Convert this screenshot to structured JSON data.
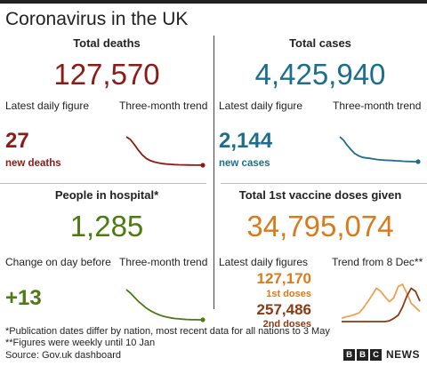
{
  "title": "Coronavirus in the UK",
  "colors": {
    "deaths": "#8c1a16",
    "cases": "#1c6e8c",
    "hospital": "#4d7a12",
    "vaccine": "#d97a1c",
    "vaccine_2nd": "#8b3a14"
  },
  "deaths": {
    "heading": "Total deaths",
    "total": "127,570",
    "daily_label": "Latest daily figure",
    "trend_label": "Three-month trend",
    "daily_value": "27",
    "daily_sub": "new deaths"
  },
  "cases": {
    "heading": "Total cases",
    "total": "4,425,940",
    "daily_label": "Latest daily figure",
    "trend_label": "Three-month trend",
    "daily_value": "2,144",
    "daily_sub": "new cases"
  },
  "hospital": {
    "heading": "People in hospital*",
    "total": "1,285",
    "daily_label": "Change on day before",
    "trend_label": "Three-month trend",
    "daily_value": "+13"
  },
  "vaccine": {
    "heading": "Total 1st vaccine doses given",
    "total": "34,795,074",
    "daily_label": "Latest daily figures",
    "trend_label": "Trend from 8 Dec**",
    "first_value": "127,170",
    "first_sub": "1st doses",
    "second_value": "257,486",
    "second_sub": "2nd doses"
  },
  "footnotes": {
    "line1": "*Publication dates differ by nation, most recent data for all nations to 3 May",
    "line2": "**Figures were weekly until 10 Jan",
    "source": "Source: Gov.uk dashboard"
  },
  "brand": {
    "b1": "B",
    "b2": "B",
    "b3": "C",
    "news": "NEWS"
  },
  "chart_data": [
    {
      "type": "line",
      "name": "deaths-trend",
      "values": [
        1300,
        1180,
        950,
        700,
        480,
        330,
        230,
        170,
        130,
        100,
        80,
        65,
        55,
        48,
        42,
        38,
        34,
        31,
        29,
        27
      ]
    },
    {
      "type": "line",
      "name": "cases-trend",
      "values": [
        60000,
        52000,
        40000,
        30000,
        21000,
        16000,
        12500,
        11000,
        10000,
        8500,
        7000,
        6200,
        5700,
        5300,
        4800,
        4200,
        3700,
        3200,
        2800,
        2500,
        2200,
        2144
      ]
    },
    {
      "type": "line",
      "name": "hospital-trend",
      "values": [
        37000,
        33000,
        28000,
        23000,
        19000,
        15000,
        12000,
        9500,
        7500,
        5800,
        4500,
        3600,
        2900,
        2400,
        2000,
        1700,
        1500,
        1400,
        1330,
        1285
      ]
    },
    {
      "type": "line",
      "name": "vaccine-1st-trend",
      "values": [
        40000,
        60000,
        70000,
        90000,
        110000,
        170000,
        250000,
        330000,
        420000,
        380000,
        310000,
        250000,
        300000,
        440000,
        470000,
        360000,
        230000,
        180000,
        127170
      ]
    },
    {
      "type": "line",
      "name": "vaccine-2nd-trend",
      "values": [
        0,
        0,
        0,
        0,
        0,
        0,
        0,
        0,
        0,
        0,
        0,
        10000,
        40000,
        80000,
        180000,
        320000,
        420000,
        380000,
        257486
      ]
    }
  ]
}
